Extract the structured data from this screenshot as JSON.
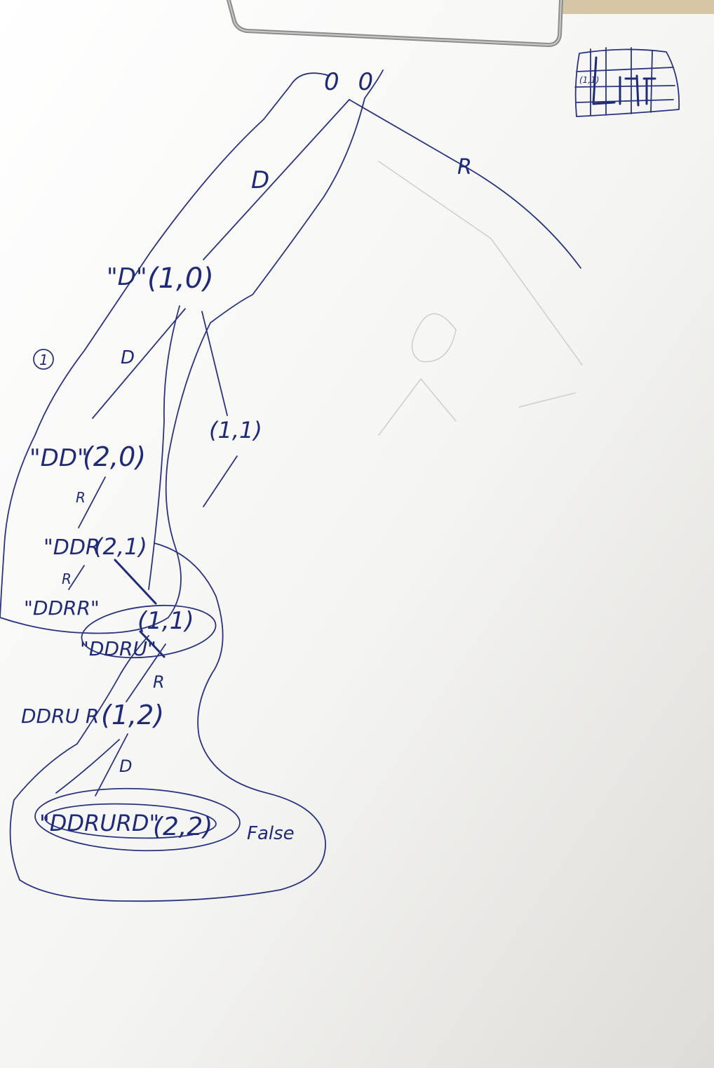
{
  "root": {
    "coord": "0 0"
  },
  "edges": {
    "root_down": "D",
    "root_right": "R",
    "n10_down": "D",
    "dd_right": "R",
    "ddr_right": "R",
    "ddru_right": "R",
    "ddrur_down": "D"
  },
  "nodes": {
    "n10": {
      "path": "\"D\"",
      "coord": "(1,0)"
    },
    "n11_side": {
      "coord": "(1,1)"
    },
    "dd": {
      "path": "\"DD\"",
      "coord": "(2,0)"
    },
    "ddr": {
      "path": "\"DDR",
      "coord": "(2,1)"
    },
    "ddrr": {
      "path": "\"DDRR\""
    },
    "n11_cycle": {
      "coord": "(1,1)"
    },
    "ddru": {
      "path": "\"DDRU\""
    },
    "ddrur": {
      "path": "DDRU R",
      "coord": "(1,2)"
    },
    "ddrurd": {
      "path": "\"DDRURD\"",
      "coord": "(2,2)",
      "result": "False"
    }
  },
  "annotations": {
    "step_marker": "1"
  },
  "inset_grid": {
    "label": "(1,1)"
  },
  "colors": {
    "ink": "#1f2a78",
    "paper": "#ffffff",
    "background": "#d9d7d3"
  }
}
